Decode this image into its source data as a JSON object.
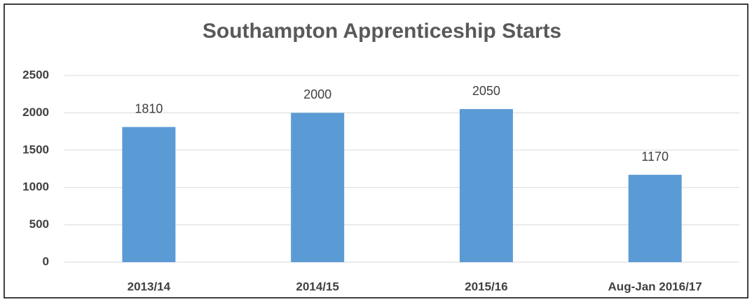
{
  "chart_data": {
    "type": "bar",
    "title": "Southampton Apprenticeship Starts",
    "categories": [
      "2013/14",
      "2014/15",
      "2015/16",
      "Aug-Jan 2016/17"
    ],
    "values": [
      1810,
      2000,
      2050,
      1170
    ],
    "color": "#5b9bd5",
    "ylim": [
      0,
      2500
    ],
    "yticks": [
      0,
      500,
      1000,
      1500,
      2000,
      2500
    ],
    "grid": true,
    "data_labels": true
  }
}
